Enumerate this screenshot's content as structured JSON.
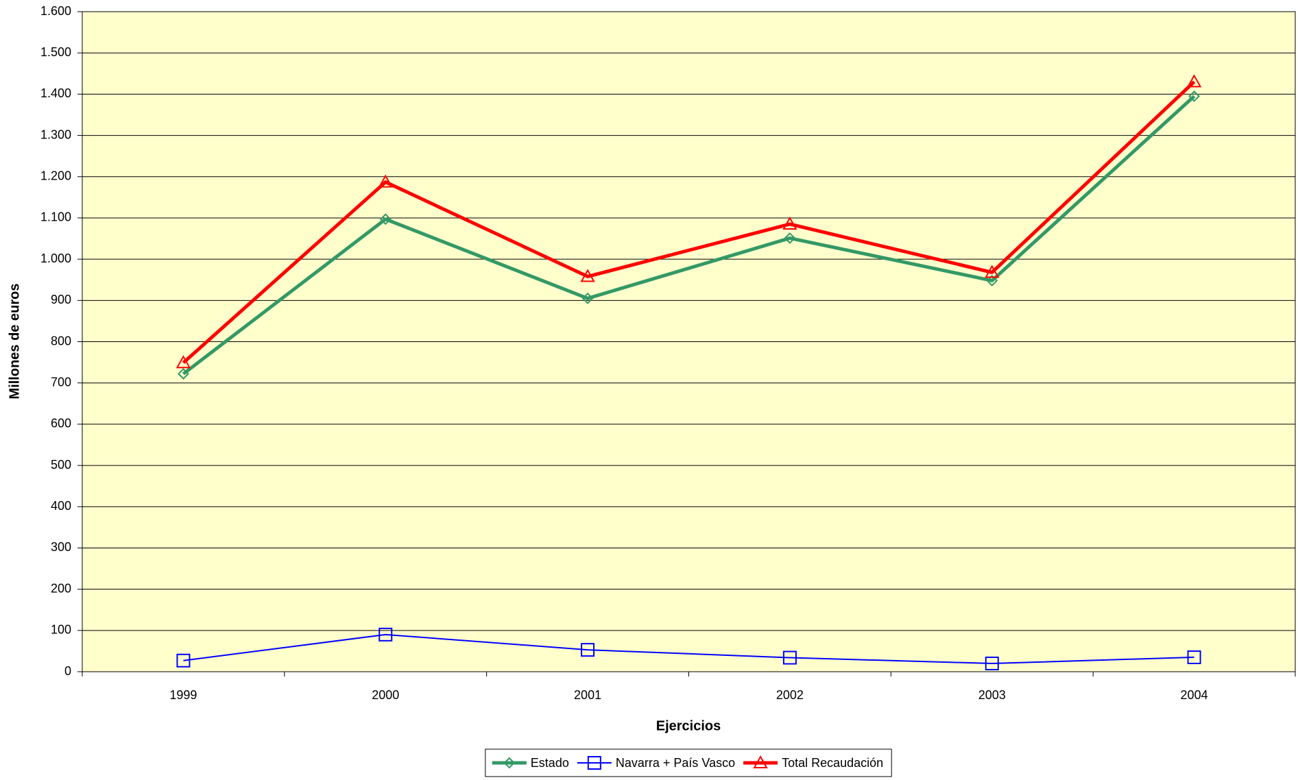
{
  "chart_data": {
    "type": "line",
    "x_label": "Ejercicios",
    "y_label": "Millones de euros",
    "categories": [
      "1999",
      "2000",
      "2001",
      "2002",
      "2003",
      "2004"
    ],
    "series": [
      {
        "name": "Estado",
        "color": "#339966",
        "marker": "diamond",
        "values": [
          722,
          1097,
          905,
          1051,
          948,
          1395
        ]
      },
      {
        "name": "Navarra + País Vasco",
        "color": "#0000ff",
        "marker": "square",
        "values": [
          27,
          90,
          53,
          34,
          20,
          35
        ]
      },
      {
        "name": "Total Recaudación",
        "color": "#ff0000",
        "marker": "triangle",
        "values": [
          749,
          1187,
          958,
          1085,
          968,
          1430
        ]
      }
    ],
    "ylim": [
      0,
      1600
    ],
    "yticks": [
      0,
      100,
      200,
      300,
      400,
      500,
      600,
      700,
      800,
      900,
      {
        "value": 1000,
        "label": "1.000"
      },
      {
        "value": 1100,
        "label": "1.100"
      },
      {
        "value": 1200,
        "label": "1.200"
      },
      {
        "value": 1300,
        "label": "1.300"
      },
      {
        "value": 1400,
        "label": "1.400"
      },
      {
        "value": 1500,
        "label": "1.500"
      },
      {
        "value": 1600,
        "label": "1.600"
      }
    ],
    "grid": true,
    "background": "#ffffcc",
    "legend": "bottom"
  }
}
